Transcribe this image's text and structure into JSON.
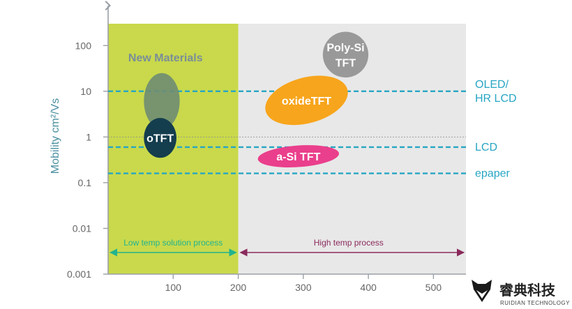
{
  "chart_data": {
    "type": "scatter",
    "ylabel": "Mobility cm²/Vs",
    "xlabel": "",
    "yscale": "log",
    "ylim": [
      0.001,
      300
    ],
    "xlim": [
      0,
      550
    ],
    "x_ticks": [
      "100",
      "200",
      "300",
      "400",
      "500"
    ],
    "y_ticks": [
      "100",
      "10",
      "1",
      "0.1",
      "0.01",
      "0.001"
    ],
    "zones": [
      {
        "label": "New Materials",
        "x_range": [
          0,
          200
        ],
        "color": "#c9d94b",
        "label_color": "#7a8e98"
      },
      {
        "label": "",
        "x_range": [
          200,
          550
        ],
        "color": "#e8e8e8",
        "label_color": ""
      }
    ],
    "technologies": [
      {
        "name": "Poly-Si TFT",
        "x": [
          330,
          400
        ],
        "y": [
          20,
          200
        ],
        "color": "#999999",
        "text_color": "#ffffff"
      },
      {
        "name": "oxideTFT",
        "x": [
          240,
          370
        ],
        "y": [
          2,
          20
        ],
        "color": "#f7a51c",
        "text_color": "#ffffff"
      },
      {
        "name": "a-Si TFT",
        "x": [
          230,
          355
        ],
        "y": [
          0.22,
          0.65
        ],
        "color": "#ea3f8c",
        "text_color": "#ffffff"
      },
      {
        "name": "oTFT",
        "x": [
          55,
          105
        ],
        "y": [
          0.35,
          2.6
        ],
        "color": "#143d4e",
        "text_color": "#ffffff"
      }
    ],
    "halo": {
      "x": [
        55,
        110
      ],
      "y": [
        1.5,
        25
      ],
      "color": "#6e8c73"
    },
    "thresholds": [
      {
        "label": "OLED/\nHR LCD",
        "y": 10
      },
      {
        "label": "LCD",
        "y": 0.6
      },
      {
        "label": "epaper",
        "y": 0.16
      }
    ],
    "threshold_color": "#27a6c4",
    "processes": [
      {
        "label": "Low temp solution process",
        "x_range": [
          0,
          200
        ],
        "color": "#22b38f"
      },
      {
        "label": "High temp process",
        "x_range": [
          200,
          550
        ],
        "color": "#8a2a5c"
      }
    ]
  },
  "brand": {
    "name_cn": "睿典科技",
    "name_en": "RUIDIAN TECHNOLOGY",
    "logo_icon": "fox-head-icon"
  }
}
